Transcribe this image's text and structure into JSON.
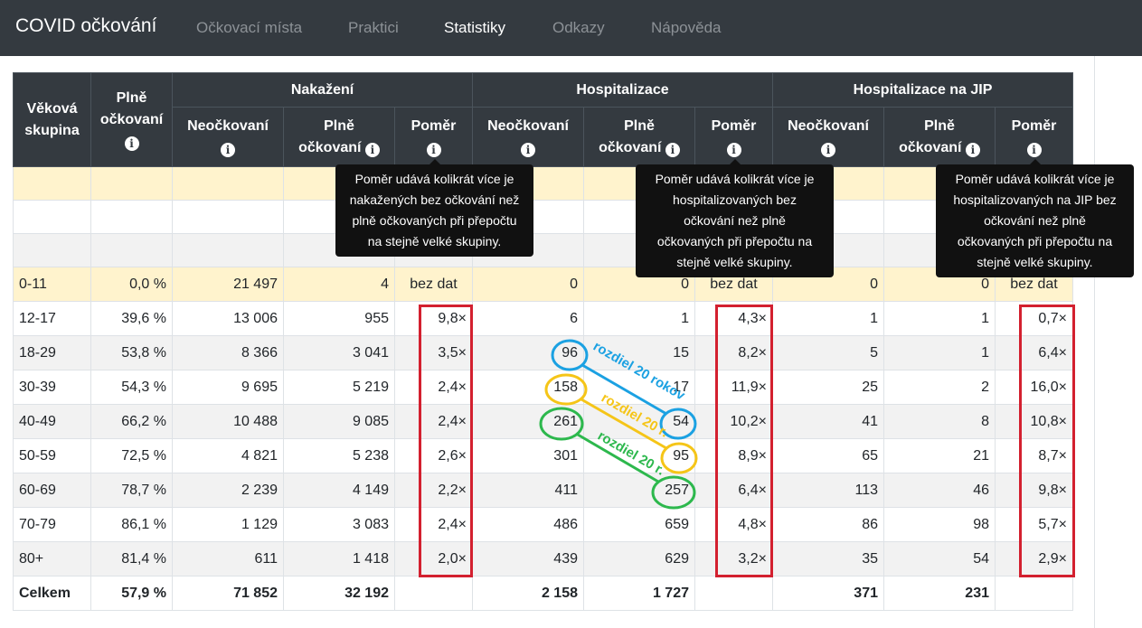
{
  "navbar": {
    "brand": "COVID očkování",
    "links": [
      "Očkovací místa",
      "Praktici",
      "Statistiky",
      "Odkazy",
      "Nápověda"
    ],
    "active": "Statistiky"
  },
  "header": {
    "age_group": [
      "Věková",
      "skupina"
    ],
    "fully_vaccinated": [
      "Plně",
      "očkovaní"
    ],
    "groups": [
      "Nakažení",
      "Hospitalizace",
      "Hospitalizace na JIP"
    ],
    "unvaccinated": "Neočkovaní",
    "fully": [
      "Plně",
      "očkovaní"
    ],
    "ratio": "Poměr",
    "info_glyph": "i"
  },
  "tooltips": [
    [
      "Poměr udává kolikrát více je",
      "nakažených bez očkování než",
      "plně očkovaných při přepočtu",
      "na stejně velké skupiny."
    ],
    [
      "Poměr udává kolikrát více je",
      "hospitalizovaných bez",
      "očkování než plně",
      "očkovaných při přepočtu na",
      "stejně velké skupiny."
    ],
    [
      "Poměr udává kolikrát více je",
      "hospitalizovaných na JIP bez",
      "očkování než plně",
      "očkovaných při přepočtu na",
      "stejně velké skupiny."
    ]
  ],
  "rows": [
    [
      "0-11",
      "0,0 %",
      "21 497",
      "4",
      "bez dat",
      "0",
      "0",
      "bez dat",
      "0",
      "0",
      "bez dat"
    ],
    [
      "12-17",
      "39,6 %",
      "13 006",
      "955",
      "9,8×",
      "6",
      "1",
      "4,3×",
      "1",
      "1",
      "0,7×"
    ],
    [
      "18-29",
      "53,8 %",
      "8 366",
      "3 041",
      "3,5×",
      "96",
      "15",
      "8,2×",
      "5",
      "1",
      "6,4×"
    ],
    [
      "30-39",
      "54,3 %",
      "9 695",
      "5 219",
      "2,4×",
      "158",
      "17",
      "11,9×",
      "25",
      "2",
      "16,0×"
    ],
    [
      "40-49",
      "66,2 %",
      "10 488",
      "9 085",
      "2,4×",
      "261",
      "54",
      "10,2×",
      "41",
      "8",
      "10,8×"
    ],
    [
      "50-59",
      "72,5 %",
      "4 821",
      "5 238",
      "2,6×",
      "301",
      "95",
      "8,9×",
      "65",
      "21",
      "8,7×"
    ],
    [
      "60-69",
      "78,7 %",
      "2 239",
      "4 149",
      "2,2×",
      "411",
      "257",
      "6,4×",
      "113",
      "46",
      "9,8×"
    ],
    [
      "70-79",
      "86,1 %",
      "1 129",
      "3 083",
      "2,4×",
      "486",
      "659",
      "4,8×",
      "86",
      "98",
      "5,7×"
    ],
    [
      "80+",
      "81,4 %",
      "611",
      "1 418",
      "2,0×",
      "439",
      "629",
      "3,2×",
      "35",
      "54",
      "2,9×"
    ]
  ],
  "total": [
    "Celkem",
    "57,9 %",
    "71 852",
    "32 192",
    "",
    "2 158",
    "1 727",
    "",
    "371",
    "231",
    ""
  ],
  "annotations": {
    "blue_label": "rozdiel 20 rokov",
    "orange_label": "rozdiel 20 r.",
    "green_label": "rozdiel 20 r.",
    "colors": {
      "blue": "#1ba1e2",
      "orange": "#f5c518",
      "green": "#2db84d",
      "red": "#d3202f"
    }
  }
}
